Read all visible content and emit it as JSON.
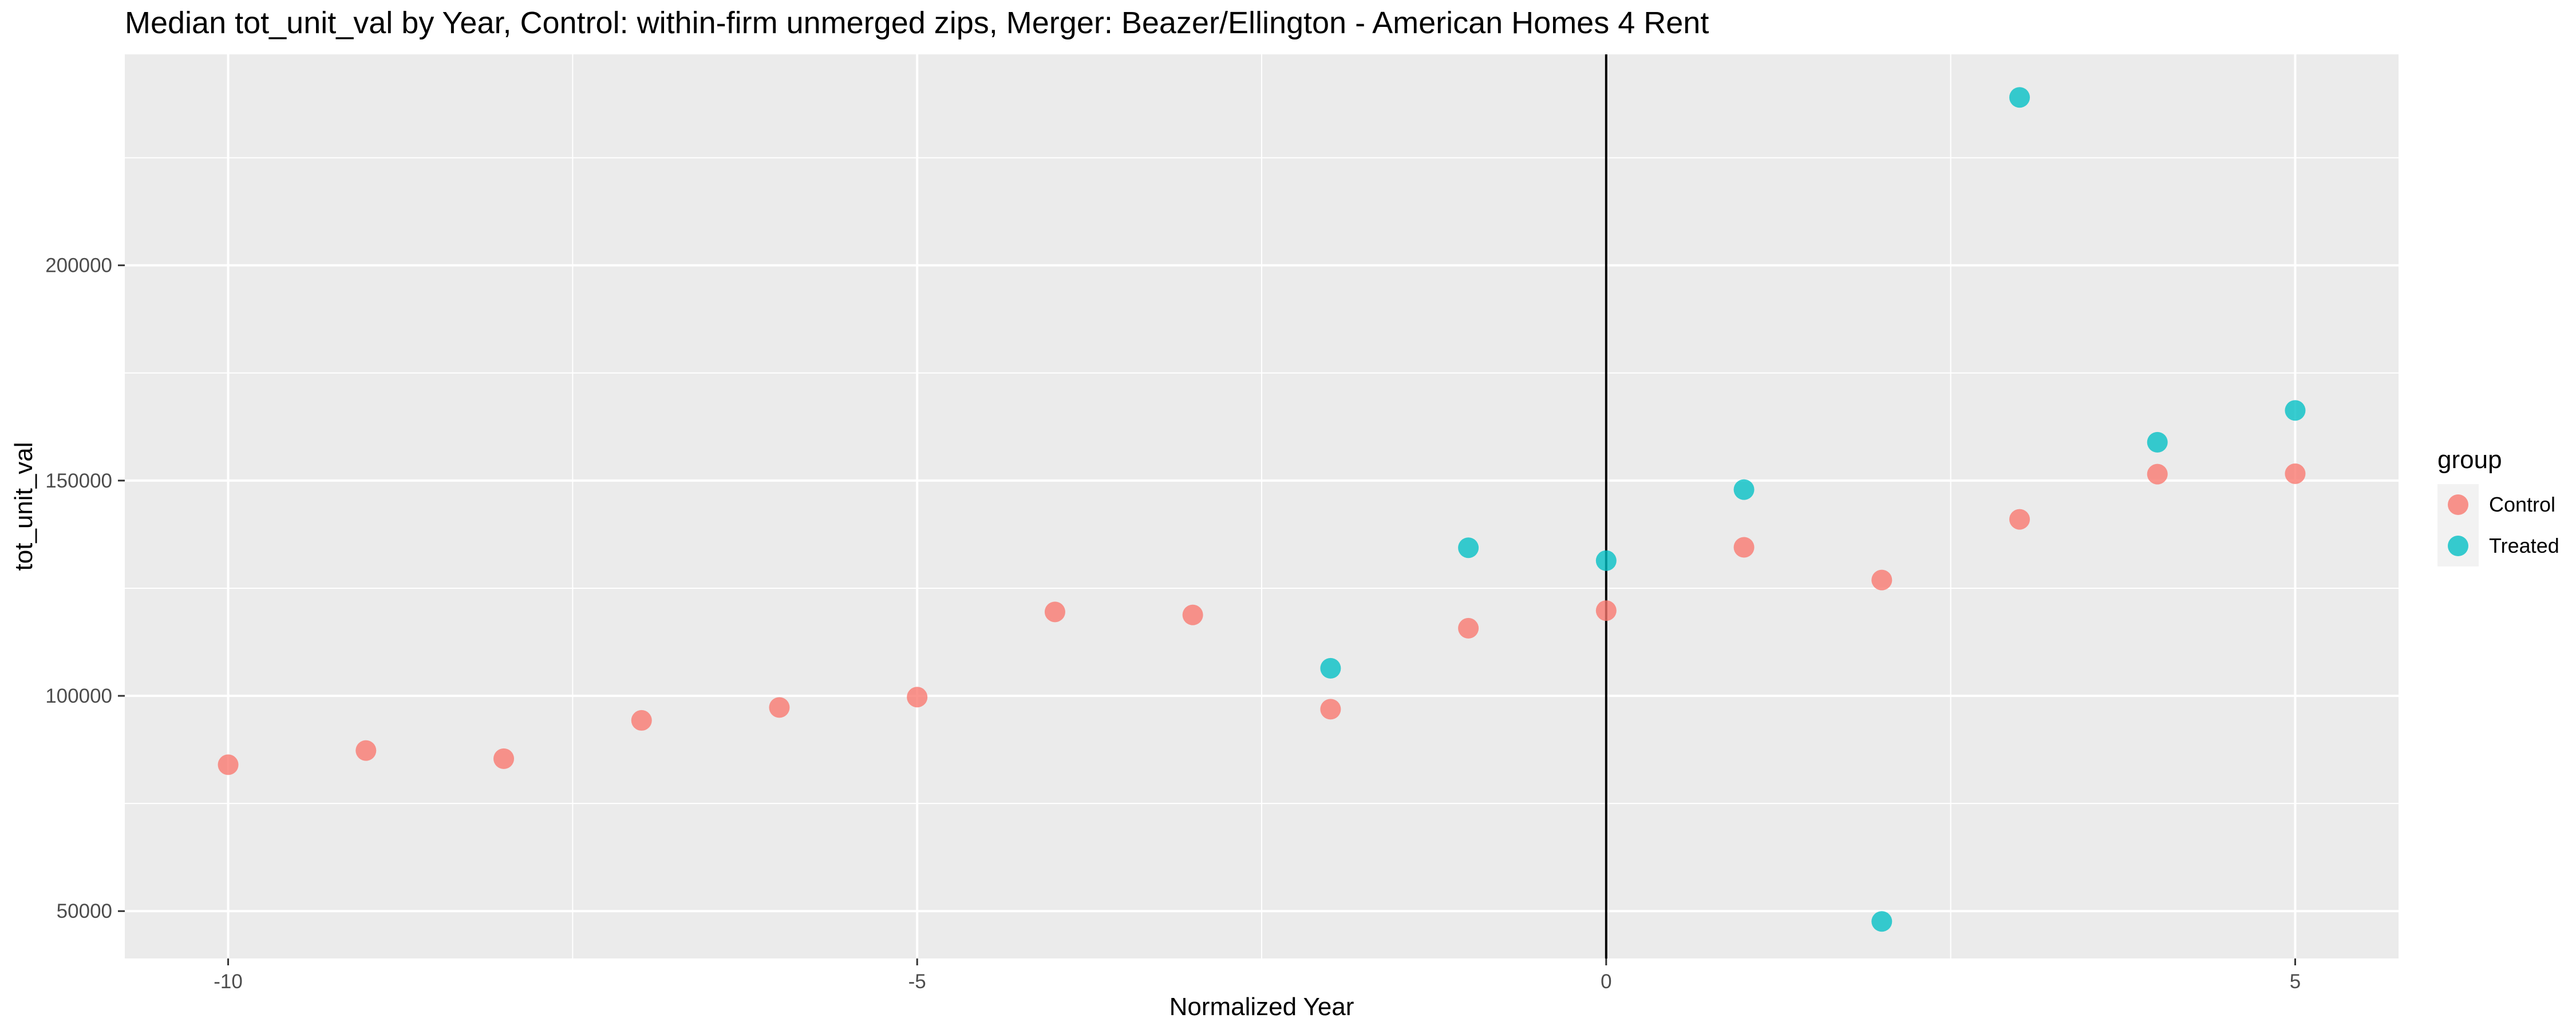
{
  "chart_data": {
    "type": "scatter",
    "title": "Median tot_unit_val by Year, Control: within-firm unmerged zips, Merger: Beazer/Ellington - American Homes 4 Rent",
    "xlabel": "Normalized Year",
    "ylabel": "tot_unit_val",
    "xlim": [
      -10.75,
      5.75
    ],
    "ylim": [
      39000,
      249000
    ],
    "x_ticks": [
      -10,
      -5,
      0,
      5
    ],
    "x_tick_labels": [
      "-10",
      "-5",
      "0",
      "5"
    ],
    "y_ticks": [
      50000,
      100000,
      150000,
      200000
    ],
    "y_tick_labels": [
      "50000",
      "100000",
      "150000",
      "200000"
    ],
    "grid": true,
    "vline_x": 0,
    "legend": {
      "title": "group",
      "position": "right"
    },
    "series": [
      {
        "name": "Control",
        "color": "#F8766D",
        "x": [
          -10,
          -9,
          -8,
          -7,
          -6,
          -5,
          -4,
          -3,
          -2,
          -1,
          0,
          1,
          2,
          3,
          4,
          5
        ],
        "y": [
          84000,
          87300,
          85400,
          94300,
          97300,
          99700,
          119500,
          118800,
          96900,
          115700,
          119800,
          134500,
          126900,
          141000,
          151500,
          151600
        ]
      },
      {
        "name": "Treated",
        "color": "#00BFC4",
        "x": [
          -2,
          -1,
          0,
          1,
          2,
          3,
          4,
          5
        ],
        "y": [
          106400,
          134400,
          131400,
          147900,
          47600,
          239000,
          158900,
          166300
        ]
      }
    ]
  }
}
